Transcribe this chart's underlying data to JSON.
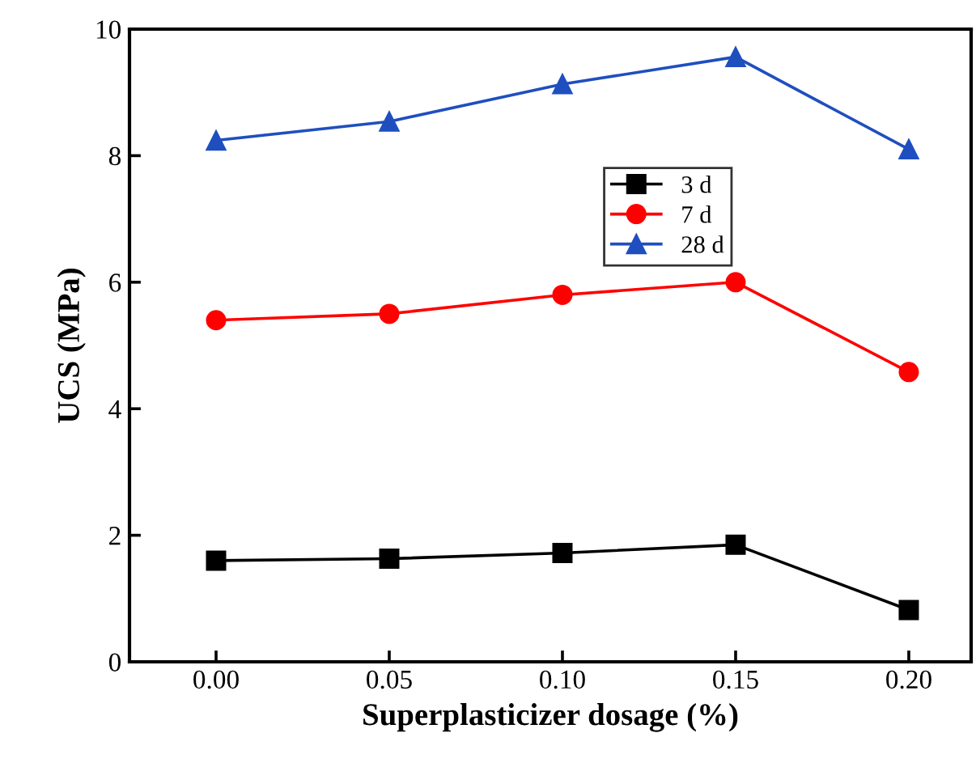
{
  "chart_data": {
    "type": "line",
    "xlabel": "Superplasticizer dosage (%)",
    "ylabel": "UCS (MPa)",
    "x": [
      0.0,
      0.05,
      0.1,
      0.15,
      0.2
    ],
    "xlim": [
      -0.025,
      0.218
    ],
    "xticks": [
      {
        "value": 0.0,
        "label": "0.00"
      },
      {
        "value": 0.05,
        "label": "0.05"
      },
      {
        "value": 0.1,
        "label": "0.10"
      },
      {
        "value": 0.15,
        "label": "0.15"
      },
      {
        "value": 0.2,
        "label": "0.20"
      }
    ],
    "ylim": [
      0,
      10
    ],
    "yticks": [
      0,
      2,
      4,
      6,
      8,
      10
    ],
    "series": [
      {
        "name": "3 d",
        "color": "#000000",
        "marker": "square",
        "values": [
          1.6,
          1.63,
          1.72,
          1.85,
          0.82
        ]
      },
      {
        "name": "7 d",
        "color": "#ff0000",
        "marker": "circle",
        "values": [
          5.4,
          5.5,
          5.8,
          6.0,
          4.58
        ]
      },
      {
        "name": "28 d",
        "color": "#1f4fbf",
        "marker": "triangle",
        "values": [
          8.24,
          8.54,
          9.13,
          9.56,
          8.1
        ]
      }
    ],
    "legend": "top right",
    "grid": false,
    "line_style": "solid"
  }
}
